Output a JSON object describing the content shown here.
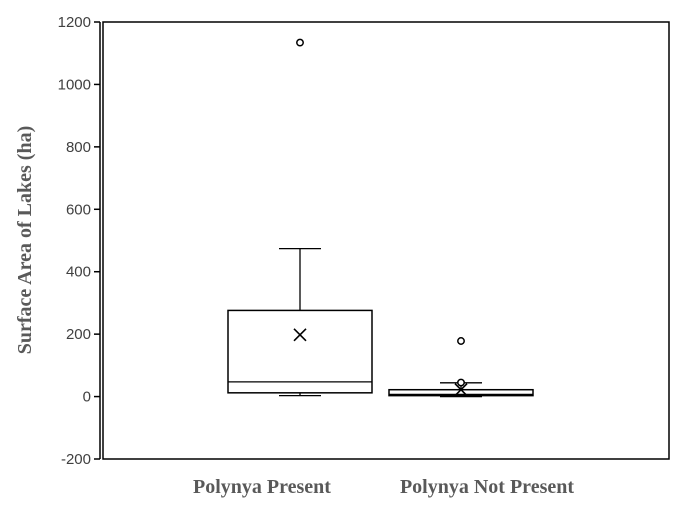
{
  "chart_data": {
    "type": "box",
    "title": "",
    "ylabel": "Surface  Area  of  Lakes  (ha)",
    "xlabel": "",
    "ylim": [
      -200,
      1200
    ],
    "yticks": [
      -200,
      0,
      200,
      400,
      600,
      800,
      1000,
      1200
    ],
    "ytick_labels": [
      "-200",
      "0",
      "200",
      "400",
      "600",
      "800",
      "1000",
      "1200"
    ],
    "grid": false,
    "legend": "none",
    "categories": [
      "Polynya Present",
      "Polynya Not Present"
    ],
    "boxes": [
      {
        "category": "Polynya Present",
        "whisker_low": 3,
        "q1": 12,
        "median": 47,
        "q3": 276,
        "whisker_high": 474,
        "mean": 198,
        "outliers": [
          1134
        ]
      },
      {
        "category": "Polynya Not Present",
        "whisker_low": 0,
        "q1": 3,
        "median": 7,
        "q3": 22,
        "whisker_high": 44,
        "mean": 22,
        "outliers": [
          45,
          178
        ]
      }
    ],
    "colors": {
      "stroke": "#000000",
      "tick_text": "#404040",
      "label_text": "#595959"
    }
  }
}
